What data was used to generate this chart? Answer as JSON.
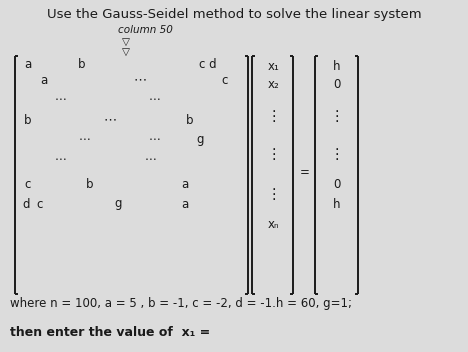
{
  "title_line": "Use the Gauss-Seidel method to solve the linear system",
  "column_label": "column 50",
  "param_line": "where n = 100, a = 5 , b = -1, c = -2, d = -1.h = 60, g=1;",
  "question_line": "then enter the value of  x₁ =",
  "bg_color": "#dcdcdc",
  "text_color": "#1a1a1a",
  "font_size_title": 9.5,
  "font_size_body": 8.5,
  "font_size_small": 7.5
}
